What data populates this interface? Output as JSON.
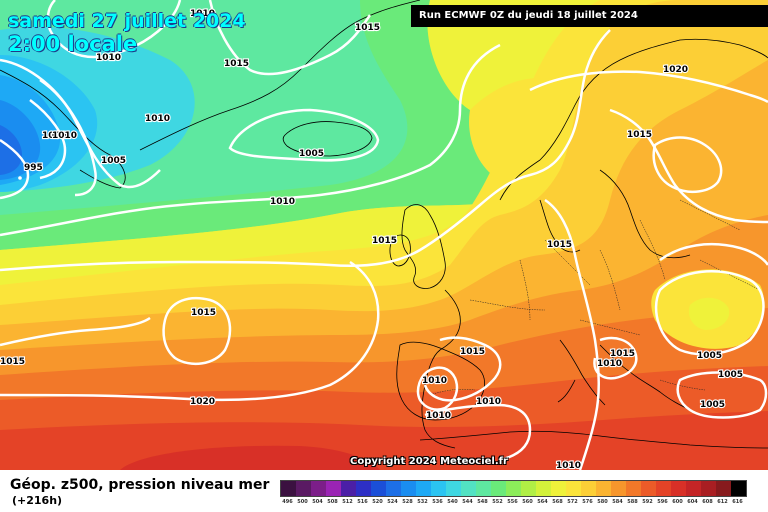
{
  "header": {
    "date": "samedi 27 juillet 2024",
    "local_time": "2:00 locale",
    "run_info": "Run ECMWF 0Z du jeudi 18 juillet 2024"
  },
  "copyright": "Copyright 2024 Meteociel.fr",
  "footer": {
    "title": "Géop. z500, pression niveau mer",
    "lead_time": "(+216h)"
  },
  "legend": {
    "values": [
      "496",
      "500",
      "504",
      "508",
      "512",
      "516",
      "520",
      "524",
      "528",
      "532",
      "536",
      "540",
      "544",
      "548",
      "552",
      "556",
      "560",
      "564",
      "568",
      "572",
      "576",
      "580",
      "584",
      "588",
      "592",
      "596",
      "600",
      "604",
      "608",
      "612",
      "616"
    ],
    "colors": [
      "#3b1140",
      "#5a1a63",
      "#7c1e89",
      "#9a24b4",
      "#4b1fa6",
      "#2d2fc6",
      "#1b4fd8",
      "#1d6fe6",
      "#1a8df0",
      "#1ea9f5",
      "#2bc4f2",
      "#3fd7e2",
      "#52e2c3",
      "#5ee8a0",
      "#6aea7a",
      "#8ced5a",
      "#b0ef45",
      "#d3f23a",
      "#eff23a",
      "#fbe43a",
      "#fccf36",
      "#fbb431",
      "#f7962c",
      "#f27829",
      "#ec5b28",
      "#e44327",
      "#d83027",
      "#c42526",
      "#a91e22",
      "#871a1d",
      "#000000"
    ]
  },
  "isobar_labels": [
    "1010",
    "1010",
    "1015",
    "1015",
    "1010",
    "1000",
    "1010",
    "995",
    "1005",
    "1005",
    "1010",
    "1015",
    "1015",
    "1015",
    "1015",
    "1020",
    "1015",
    "1010",
    "1015",
    "1005",
    "1005",
    "1005",
    "1015",
    "1010",
    "1010",
    "1010",
    "1010",
    "1020"
  ]
}
